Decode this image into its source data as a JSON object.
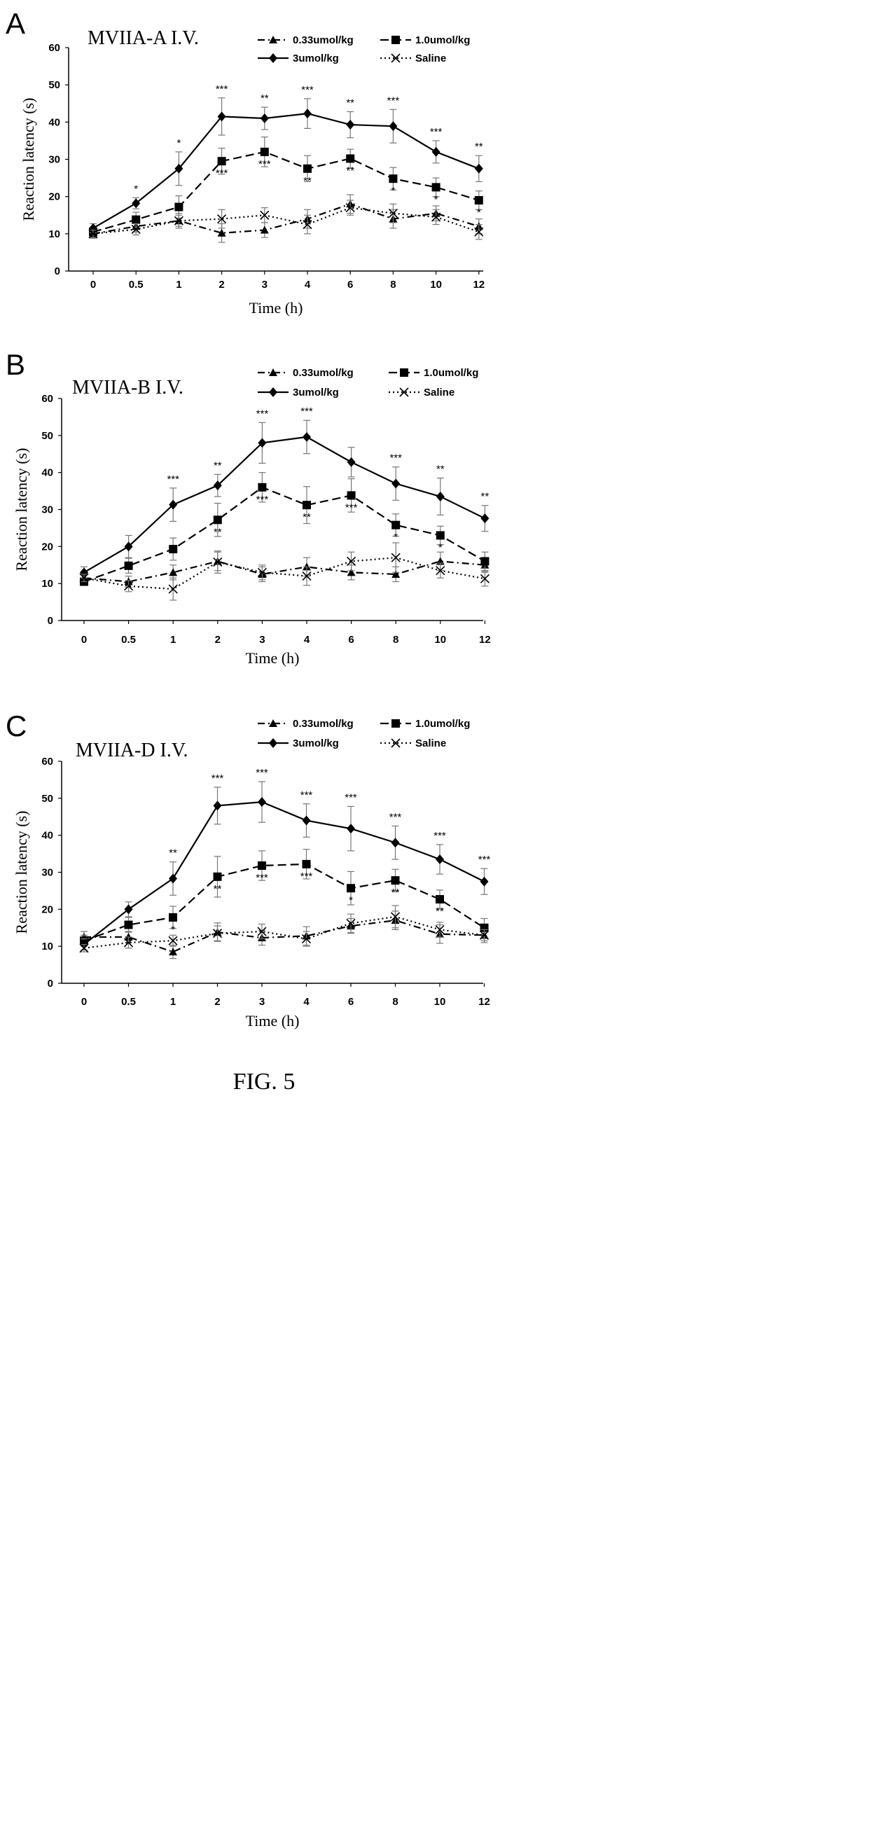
{
  "figure_caption": "FIG. 5",
  "colors": {
    "ink": "#000000",
    "error_bar": "#777777"
  },
  "chart_data": [
    {
      "panel_letter": "A",
      "type": "line",
      "title": "MVIIA-A I.V.",
      "xlabel": "Time (h)",
      "ylabel": "Reaction latency (s)",
      "categories": [
        "0",
        "0.5",
        "1",
        "2",
        "3",
        "4",
        "6",
        "8",
        "10",
        "12"
      ],
      "ylim": [
        0,
        60
      ],
      "yticks": [
        "0",
        "10",
        "20",
        "30",
        "40",
        "50",
        "60"
      ],
      "grid": false,
      "legend_position": "top-right",
      "series": [
        {
          "name": "0.33umol/kg",
          "marker": "triangle",
          "line": "dashdot",
          "values": [
            10,
            12,
            13.5,
            10.2,
            11,
            14,
            18,
            14,
            15.5,
            12
          ],
          "errors": [
            1.2,
            1.5,
            1.5,
            2.5,
            2.0,
            2.5,
            2.5,
            2.5,
            2.0,
            2.0
          ],
          "significance": [
            "",
            "",
            "",
            "",
            "",
            "",
            "",
            "",
            "",
            ""
          ]
        },
        {
          "name": "1.0umol/kg",
          "marker": "square",
          "line": "dashed",
          "values": [
            10.5,
            13.8,
            17.2,
            29.5,
            32,
            27.5,
            30.2,
            24.8,
            22.5,
            19
          ],
          "errors": [
            1.0,
            2.0,
            3.0,
            3.5,
            4.0,
            3.5,
            2.5,
            3.0,
            2.5,
            2.5
          ],
          "significance": [
            "",
            "",
            "",
            "***",
            "***",
            "**",
            "**",
            "*",
            "*",
            "*"
          ]
        },
        {
          "name": "3umol/kg",
          "marker": "diamond",
          "line": "solid",
          "values": [
            11.5,
            18.2,
            27.5,
            41.5,
            41,
            42.3,
            39.3,
            38.9,
            32,
            27.5
          ],
          "errors": [
            1.2,
            1.5,
            4.5,
            5.0,
            3.0,
            4.0,
            3.5,
            4.5,
            3.0,
            3.5
          ],
          "significance": [
            "",
            "*",
            "*",
            "***",
            "**",
            "***",
            "**",
            "***",
            "***",
            "**"
          ]
        },
        {
          "name": "Saline",
          "marker": "x",
          "line": "dotted",
          "values": [
            10,
            11.2,
            13.5,
            14,
            15,
            12.5,
            17,
            15.5,
            14.5,
            10.5
          ],
          "errors": [
            1.0,
            1.5,
            2.0,
            2.5,
            2.0,
            2.5,
            2.0,
            2.5,
            2.0,
            2.0
          ],
          "significance": [
            "",
            "",
            "",
            "",
            "",
            "",
            "",
            "",
            "",
            ""
          ]
        }
      ]
    },
    {
      "panel_letter": "B",
      "type": "line",
      "title": "MVIIA-B I.V.",
      "xlabel": "Time (h)",
      "ylabel": "Reaction latency (s)",
      "categories": [
        "0",
        "0.5",
        "1",
        "2",
        "3",
        "4",
        "6",
        "8",
        "10",
        "12"
      ],
      "ylim": [
        0,
        60
      ],
      "yticks": [
        "0",
        "10",
        "20",
        "30",
        "40",
        "50",
        "60"
      ],
      "grid": false,
      "legend_position": "top-right",
      "series": [
        {
          "name": "0.33umol/kg",
          "marker": "triangle",
          "line": "dashdot",
          "values": [
            11.5,
            10.5,
            13,
            16,
            12.5,
            14.5,
            13,
            12.5,
            16,
            15
          ],
          "errors": [
            1.2,
            1.5,
            2.0,
            2.5,
            2.0,
            2.5,
            2.0,
            2.0,
            2.5,
            2.0
          ],
          "significance": [
            "",
            "",
            "",
            "",
            "",
            "",
            "",
            "",
            "",
            ""
          ]
        },
        {
          "name": "1.0umol/kg",
          "marker": "square",
          "line": "dashed",
          "values": [
            10.5,
            14.8,
            19.3,
            27.2,
            36,
            31.2,
            33.8,
            25.8,
            23,
            16
          ],
          "errors": [
            1.0,
            2.0,
            3.0,
            4.5,
            4.0,
            5.0,
            4.5,
            3.0,
            2.5,
            2.5
          ],
          "significance": [
            "",
            "",
            "",
            "**",
            "***",
            "**",
            "***",
            "*",
            "*",
            ""
          ]
        },
        {
          "name": "3umol/kg",
          "marker": "diamond",
          "line": "solid",
          "values": [
            13,
            20,
            31.3,
            36.5,
            48,
            49.6,
            42.8,
            37,
            33.5,
            27.6
          ],
          "errors": [
            1.5,
            3.0,
            4.5,
            3.0,
            5.5,
            4.5,
            4.0,
            4.5,
            5.0,
            3.5
          ],
          "significance": [
            "",
            "",
            "***",
            "**",
            "***",
            "***",
            "",
            "***",
            "**",
            "**"
          ]
        },
        {
          "name": "Saline",
          "marker": "x",
          "line": "dotted",
          "values": [
            11.5,
            9.3,
            8.5,
            15.8,
            13,
            12,
            16,
            17,
            13.5,
            11.3
          ],
          "errors": [
            1.0,
            1.5,
            3.0,
            3.0,
            2.0,
            2.5,
            2.5,
            4.0,
            2.0,
            2.0
          ],
          "significance": [
            "",
            "",
            "",
            "",
            "",
            "",
            "",
            "",
            "",
            ""
          ]
        }
      ]
    },
    {
      "panel_letter": "C",
      "type": "line",
      "title": "MVIIA-D I.V.",
      "xlabel": "Time (h)",
      "ylabel": "Reaction latency (s)",
      "categories": [
        "0",
        "0.5",
        "1",
        "2",
        "3",
        "4",
        "6",
        "8",
        "10",
        "12"
      ],
      "ylim": [
        0,
        60
      ],
      "yticks": [
        "0",
        "10",
        "20",
        "30",
        "40",
        "50",
        "60"
      ],
      "grid": false,
      "legend_position": "top-right",
      "series": [
        {
          "name": "0.33umol/kg",
          "marker": "triangle",
          "line": "dashdot",
          "values": [
            12.5,
            12.5,
            8.5,
            13.8,
            12.3,
            12.8,
            15.5,
            17,
            13.3,
            13
          ],
          "errors": [
            1.5,
            1.5,
            1.8,
            2.5,
            2.0,
            2.5,
            2.0,
            2.5,
            2.5,
            2.0
          ],
          "significance": [
            "",
            "",
            "",
            "",
            "",
            "",
            "",
            "",
            "",
            ""
          ]
        },
        {
          "name": "1.0umol/kg",
          "marker": "square",
          "line": "dashed",
          "values": [
            11.5,
            15.8,
            17.8,
            28.8,
            31.8,
            32.2,
            25.7,
            27.8,
            22.7,
            15
          ],
          "errors": [
            1.5,
            2.0,
            3.0,
            5.5,
            4.0,
            4.0,
            4.5,
            3.0,
            2.5,
            2.5
          ],
          "significance": [
            "",
            "",
            "*",
            "**",
            "***",
            "***",
            "*",
            "**",
            "**",
            ""
          ]
        },
        {
          "name": "3umol/kg",
          "marker": "diamond",
          "line": "solid",
          "values": [
            10.5,
            20,
            28.3,
            48,
            49,
            44,
            41.8,
            38,
            33.5,
            27.5
          ],
          "errors": [
            1.5,
            2.0,
            4.5,
            5.0,
            5.5,
            4.5,
            6.0,
            4.5,
            4.0,
            3.5
          ],
          "significance": [
            "",
            "",
            "**",
            "***",
            "***",
            "***",
            "***",
            "***",
            "***",
            "***"
          ]
        },
        {
          "name": "Saline",
          "marker": "x",
          "line": "dotted",
          "values": [
            9.5,
            11,
            11.5,
            13.5,
            14,
            12,
            16.2,
            18,
            14.5,
            13
          ],
          "errors": [
            1.0,
            1.5,
            1.5,
            2.0,
            2.0,
            2.0,
            2.5,
            3.0,
            2.0,
            1.5
          ],
          "significance": [
            "",
            "",
            "",
            "",
            "",
            "",
            "",
            "",
            "",
            ""
          ]
        }
      ]
    }
  ]
}
